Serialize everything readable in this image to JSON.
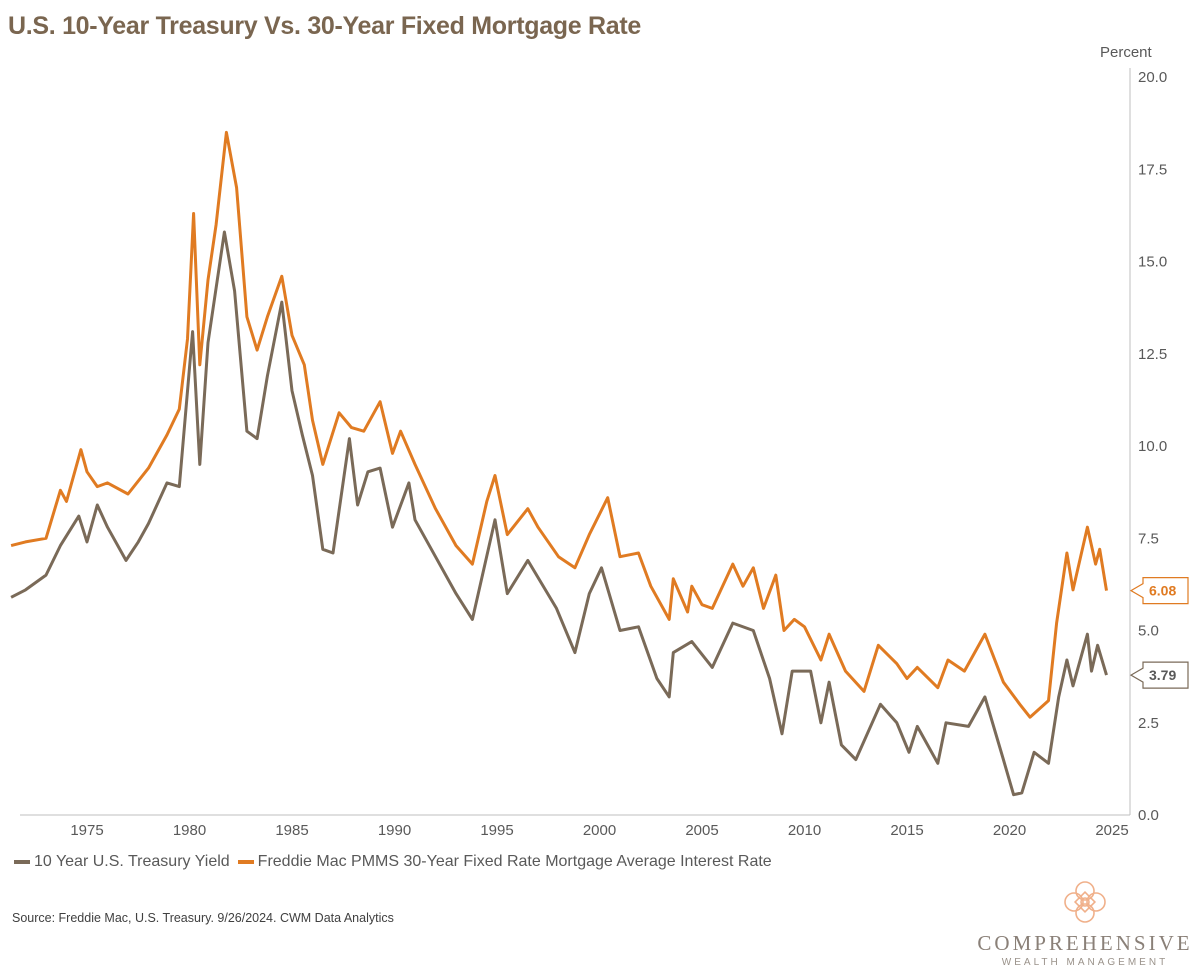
{
  "chart_data": {
    "type": "line",
    "title": "U.S. 10-Year Treasury Vs. 30-Year Fixed Mortgage Rate",
    "ylabel": "Percent",
    "xlabel": "",
    "ylim": [
      0,
      20
    ],
    "xlim": [
      1971.3,
      2025.5
    ],
    "yaxis_position": "right",
    "grid": false,
    "legend_position": "bottom-left",
    "x_ticks": [
      1975,
      1980,
      1985,
      1990,
      1995,
      2000,
      2005,
      2010,
      2015,
      2020,
      2025
    ],
    "y_ticks": [
      "0.0",
      "2.5",
      "5.0",
      "7.5",
      "10.0",
      "12.5",
      "15.0",
      "17.5",
      "20.0"
    ],
    "series": [
      {
        "name": "10 Year U.S. Treasury Yield",
        "color": "#7a6a58",
        "end_label": "3.79",
        "points": [
          [
            1971.3,
            5.9
          ],
          [
            1972,
            6.1
          ],
          [
            1973,
            6.5
          ],
          [
            1973.7,
            7.3
          ],
          [
            1974.6,
            8.1
          ],
          [
            1975,
            7.4
          ],
          [
            1975.5,
            8.4
          ],
          [
            1976,
            7.8
          ],
          [
            1976.9,
            6.9
          ],
          [
            1977.5,
            7.4
          ],
          [
            1978,
            7.9
          ],
          [
            1978.9,
            9.0
          ],
          [
            1979.5,
            8.9
          ],
          [
            1980.15,
            13.1
          ],
          [
            1980.5,
            9.5
          ],
          [
            1980.9,
            12.8
          ],
          [
            1981.7,
            15.8
          ],
          [
            1982.2,
            14.2
          ],
          [
            1982.8,
            10.4
          ],
          [
            1983.3,
            10.2
          ],
          [
            1983.8,
            11.9
          ],
          [
            1984.5,
            13.9
          ],
          [
            1985,
            11.5
          ],
          [
            1985.5,
            10.3
          ],
          [
            1986,
            9.2
          ],
          [
            1986.5,
            7.2
          ],
          [
            1987,
            7.1
          ],
          [
            1987.8,
            10.2
          ],
          [
            1988.2,
            8.4
          ],
          [
            1988.7,
            9.3
          ],
          [
            1989.3,
            9.4
          ],
          [
            1989.9,
            7.8
          ],
          [
            1990.7,
            9.0
          ],
          [
            1991,
            8.0
          ],
          [
            1992,
            7.0
          ],
          [
            1993,
            6.0
          ],
          [
            1993.8,
            5.3
          ],
          [
            1994.9,
            8.0
          ],
          [
            1995.5,
            6.0
          ],
          [
            1996.5,
            6.9
          ],
          [
            1997.9,
            5.6
          ],
          [
            1998.8,
            4.4
          ],
          [
            1999.5,
            6.0
          ],
          [
            2000.1,
            6.7
          ],
          [
            2001,
            5.0
          ],
          [
            2001.9,
            5.1
          ],
          [
            2002.8,
            3.7
          ],
          [
            2003.4,
            3.2
          ],
          [
            2003.6,
            4.4
          ],
          [
            2004.5,
            4.7
          ],
          [
            2005.5,
            4.0
          ],
          [
            2006.5,
            5.2
          ],
          [
            2007.5,
            5.0
          ],
          [
            2008.3,
            3.7
          ],
          [
            2008.9,
            2.2
          ],
          [
            2009.4,
            3.9
          ],
          [
            2010.3,
            3.9
          ],
          [
            2010.8,
            2.5
          ],
          [
            2011.2,
            3.6
          ],
          [
            2011.8,
            1.9
          ],
          [
            2012.5,
            1.5
          ],
          [
            2013.7,
            3.0
          ],
          [
            2014.5,
            2.5
          ],
          [
            2015.1,
            1.7
          ],
          [
            2015.5,
            2.4
          ],
          [
            2016.5,
            1.4
          ],
          [
            2016.9,
            2.5
          ],
          [
            2018.0,
            2.4
          ],
          [
            2018.8,
            3.2
          ],
          [
            2019.7,
            1.5
          ],
          [
            2020.2,
            0.55
          ],
          [
            2020.6,
            0.6
          ],
          [
            2021.2,
            1.7
          ],
          [
            2021.9,
            1.4
          ],
          [
            2022.4,
            3.2
          ],
          [
            2022.8,
            4.2
          ],
          [
            2023.1,
            3.5
          ],
          [
            2023.8,
            4.9
          ],
          [
            2024.0,
            3.9
          ],
          [
            2024.3,
            4.6
          ],
          [
            2024.73,
            3.79
          ]
        ]
      },
      {
        "name": "Freddie Mac PMMS 30-Year Fixed Rate Mortgage Average Interest Rate",
        "color": "#e07b22",
        "end_label": "6.08",
        "points": [
          [
            1971.3,
            7.3
          ],
          [
            1972,
            7.4
          ],
          [
            1973,
            7.5
          ],
          [
            1973.7,
            8.8
          ],
          [
            1974,
            8.5
          ],
          [
            1974.7,
            9.9
          ],
          [
            1975,
            9.3
          ],
          [
            1975.5,
            8.9
          ],
          [
            1976,
            9.0
          ],
          [
            1977,
            8.7
          ],
          [
            1978,
            9.4
          ],
          [
            1978.9,
            10.3
          ],
          [
            1979.5,
            11.0
          ],
          [
            1979.9,
            12.9
          ],
          [
            1980.2,
            16.3
          ],
          [
            1980.5,
            12.2
          ],
          [
            1980.9,
            14.5
          ],
          [
            1981.3,
            16.0
          ],
          [
            1981.8,
            18.5
          ],
          [
            1982.3,
            17.0
          ],
          [
            1982.8,
            13.5
          ],
          [
            1983.3,
            12.6
          ],
          [
            1983.8,
            13.5
          ],
          [
            1984.5,
            14.6
          ],
          [
            1985,
            13.0
          ],
          [
            1985.6,
            12.2
          ],
          [
            1986,
            10.7
          ],
          [
            1986.5,
            9.5
          ],
          [
            1987.3,
            10.9
          ],
          [
            1987.9,
            10.5
          ],
          [
            1988.5,
            10.4
          ],
          [
            1989.3,
            11.2
          ],
          [
            1989.9,
            9.8
          ],
          [
            1990.3,
            10.4
          ],
          [
            1991,
            9.5
          ],
          [
            1992,
            8.3
          ],
          [
            1993,
            7.3
          ],
          [
            1993.8,
            6.8
          ],
          [
            1994.5,
            8.5
          ],
          [
            1994.9,
            9.2
          ],
          [
            1995.5,
            7.6
          ],
          [
            1996.5,
            8.3
          ],
          [
            1997,
            7.8
          ],
          [
            1998,
            7.0
          ],
          [
            1998.8,
            6.7
          ],
          [
            1999.5,
            7.6
          ],
          [
            2000.4,
            8.6
          ],
          [
            2001,
            7.0
          ],
          [
            2001.9,
            7.1
          ],
          [
            2002.5,
            6.2
          ],
          [
            2003.4,
            5.3
          ],
          [
            2003.6,
            6.4
          ],
          [
            2004.3,
            5.5
          ],
          [
            2004.5,
            6.2
          ],
          [
            2005,
            5.7
          ],
          [
            2005.5,
            5.6
          ],
          [
            2006.5,
            6.8
          ],
          [
            2007,
            6.2
          ],
          [
            2007.5,
            6.7
          ],
          [
            2008,
            5.6
          ],
          [
            2008.6,
            6.5
          ],
          [
            2009,
            5.0
          ],
          [
            2009.5,
            5.3
          ],
          [
            2010,
            5.1
          ],
          [
            2010.8,
            4.2
          ],
          [
            2011.2,
            4.9
          ],
          [
            2012,
            3.9
          ],
          [
            2012.9,
            3.35
          ],
          [
            2013.6,
            4.6
          ],
          [
            2014.5,
            4.1
          ],
          [
            2015,
            3.7
          ],
          [
            2015.5,
            4.0
          ],
          [
            2016.5,
            3.45
          ],
          [
            2017,
            4.2
          ],
          [
            2017.8,
            3.9
          ],
          [
            2018.8,
            4.9
          ],
          [
            2019.7,
            3.6
          ],
          [
            2020.5,
            3.0
          ],
          [
            2021,
            2.65
          ],
          [
            2021.9,
            3.1
          ],
          [
            2022.3,
            5.2
          ],
          [
            2022.8,
            7.1
          ],
          [
            2023.1,
            6.1
          ],
          [
            2023.8,
            7.8
          ],
          [
            2024.2,
            6.8
          ],
          [
            2024.4,
            7.2
          ],
          [
            2024.73,
            6.08
          ]
        ]
      }
    ]
  },
  "legend": {
    "items": [
      "10 Year U.S. Treasury Yield",
      "Freddie Mac PMMS 30-Year Fixed Rate Mortgage Average Interest Rate"
    ]
  },
  "source": "Source: Freddie Mac, U.S. Treasury. 9/26/2024. CWM Data Analytics",
  "logo": {
    "name": "COMPREHENSIVE",
    "sub": "WEALTH MANAGEMENT",
    "color": "#f0b08a"
  }
}
